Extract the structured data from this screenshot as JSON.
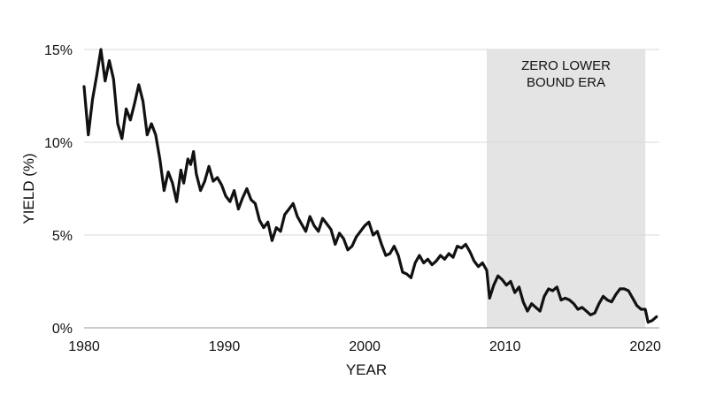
{
  "chart_data": {
    "type": "line",
    "title": "",
    "xlabel": "YEAR",
    "ylabel": "YIELD (%)",
    "xlim": [
      1980,
      2021
    ],
    "ylim": [
      0,
      15
    ],
    "x_ticks": [
      1980,
      1990,
      2000,
      2010,
      2020
    ],
    "x_tick_labels": [
      "1980",
      "1990",
      "2000",
      "2010",
      "2020"
    ],
    "y_ticks": [
      0,
      5,
      10,
      15
    ],
    "y_tick_labels": [
      "0%",
      "5%",
      "10%",
      "15%"
    ],
    "grid": "horizontal",
    "shaded_region": {
      "label_lines": [
        "ZERO LOWER",
        "BOUND ERA"
      ],
      "x_start": 2008.7,
      "x_end": 2020.0,
      "color": "#e4e4e4"
    },
    "series": [
      {
        "color": "#111111",
        "points": [
          [
            1980.0,
            13.0
          ],
          [
            1980.3,
            10.4
          ],
          [
            1980.6,
            12.3
          ],
          [
            1980.9,
            13.6
          ],
          [
            1981.2,
            15.0
          ],
          [
            1981.5,
            13.3
          ],
          [
            1981.8,
            14.4
          ],
          [
            1982.1,
            13.4
          ],
          [
            1982.4,
            11.0
          ],
          [
            1982.7,
            10.2
          ],
          [
            1983.0,
            11.8
          ],
          [
            1983.3,
            11.2
          ],
          [
            1983.6,
            12.1
          ],
          [
            1983.9,
            13.1
          ],
          [
            1984.2,
            12.2
          ],
          [
            1984.5,
            10.4
          ],
          [
            1984.8,
            11.0
          ],
          [
            1985.1,
            10.4
          ],
          [
            1985.4,
            9.1
          ],
          [
            1985.7,
            7.4
          ],
          [
            1986.0,
            8.4
          ],
          [
            1986.3,
            7.8
          ],
          [
            1986.6,
            6.8
          ],
          [
            1986.9,
            8.5
          ],
          [
            1987.1,
            7.8
          ],
          [
            1987.4,
            9.1
          ],
          [
            1987.6,
            8.8
          ],
          [
            1987.8,
            9.5
          ],
          [
            1988.0,
            8.3
          ],
          [
            1988.3,
            7.4
          ],
          [
            1988.6,
            7.9
          ],
          [
            1988.9,
            8.7
          ],
          [
            1989.2,
            7.9
          ],
          [
            1989.5,
            8.1
          ],
          [
            1989.8,
            7.7
          ],
          [
            1990.1,
            7.1
          ],
          [
            1990.4,
            6.8
          ],
          [
            1990.7,
            7.4
          ],
          [
            1991.0,
            6.4
          ],
          [
            1991.3,
            7.0
          ],
          [
            1991.6,
            7.5
          ],
          [
            1991.9,
            6.9
          ],
          [
            1992.2,
            6.7
          ],
          [
            1992.5,
            5.8
          ],
          [
            1992.8,
            5.4
          ],
          [
            1993.1,
            5.7
          ],
          [
            1993.4,
            4.7
          ],
          [
            1993.7,
            5.4
          ],
          [
            1994.0,
            5.2
          ],
          [
            1994.3,
            6.1
          ],
          [
            1994.6,
            6.4
          ],
          [
            1994.9,
            6.7
          ],
          [
            1995.2,
            6.0
          ],
          [
            1995.5,
            5.6
          ],
          [
            1995.8,
            5.2
          ],
          [
            1996.1,
            6.0
          ],
          [
            1996.4,
            5.5
          ],
          [
            1996.7,
            5.2
          ],
          [
            1997.0,
            5.9
          ],
          [
            1997.3,
            5.6
          ],
          [
            1997.6,
            5.3
          ],
          [
            1997.9,
            4.5
          ],
          [
            1998.2,
            5.1
          ],
          [
            1998.5,
            4.8
          ],
          [
            1998.8,
            4.2
          ],
          [
            1999.1,
            4.4
          ],
          [
            1999.4,
            4.9
          ],
          [
            1999.7,
            5.2
          ],
          [
            2000.0,
            5.5
          ],
          [
            2000.3,
            5.7
          ],
          [
            2000.6,
            5.0
          ],
          [
            2000.9,
            5.2
          ],
          [
            2001.2,
            4.5
          ],
          [
            2001.5,
            3.9
          ],
          [
            2001.8,
            4.0
          ],
          [
            2002.1,
            4.4
          ],
          [
            2002.4,
            3.9
          ],
          [
            2002.7,
            3.0
          ],
          [
            2003.0,
            2.9
          ],
          [
            2003.3,
            2.7
          ],
          [
            2003.6,
            3.5
          ],
          [
            2003.9,
            3.9
          ],
          [
            2004.2,
            3.5
          ],
          [
            2004.5,
            3.7
          ],
          [
            2004.8,
            3.4
          ],
          [
            2005.1,
            3.6
          ],
          [
            2005.4,
            3.9
          ],
          [
            2005.7,
            3.7
          ],
          [
            2006.0,
            4.0
          ],
          [
            2006.3,
            3.8
          ],
          [
            2006.6,
            4.4
          ],
          [
            2006.9,
            4.3
          ],
          [
            2007.2,
            4.5
          ],
          [
            2007.5,
            4.1
          ],
          [
            2007.8,
            3.6
          ],
          [
            2008.1,
            3.3
          ],
          [
            2008.4,
            3.5
          ],
          [
            2008.7,
            3.1
          ],
          [
            2008.9,
            1.6
          ],
          [
            2009.2,
            2.3
          ],
          [
            2009.5,
            2.8
          ],
          [
            2009.8,
            2.6
          ],
          [
            2010.1,
            2.3
          ],
          [
            2010.4,
            2.5
          ],
          [
            2010.7,
            1.9
          ],
          [
            2011.0,
            2.2
          ],
          [
            2011.3,
            1.4
          ],
          [
            2011.6,
            0.9
          ],
          [
            2011.9,
            1.3
          ],
          [
            2012.2,
            1.1
          ],
          [
            2012.5,
            0.9
          ],
          [
            2012.8,
            1.7
          ],
          [
            2013.1,
            2.1
          ],
          [
            2013.4,
            2.0
          ],
          [
            2013.7,
            2.2
          ],
          [
            2014.0,
            1.5
          ],
          [
            2014.3,
            1.6
          ],
          [
            2014.6,
            1.5
          ],
          [
            2014.9,
            1.3
          ],
          [
            2015.2,
            1.0
          ],
          [
            2015.5,
            1.1
          ],
          [
            2015.8,
            0.9
          ],
          [
            2016.1,
            0.7
          ],
          [
            2016.4,
            0.8
          ],
          [
            2016.7,
            1.3
          ],
          [
            2017.0,
            1.7
          ],
          [
            2017.3,
            1.5
          ],
          [
            2017.6,
            1.4
          ],
          [
            2017.9,
            1.8
          ],
          [
            2018.2,
            2.1
          ],
          [
            2018.5,
            2.1
          ],
          [
            2018.8,
            2.0
          ],
          [
            2019.1,
            1.6
          ],
          [
            2019.4,
            1.2
          ],
          [
            2019.7,
            1.0
          ],
          [
            2020.0,
            1.0
          ],
          [
            2020.2,
            0.3
          ],
          [
            2020.5,
            0.4
          ],
          [
            2020.8,
            0.6
          ]
        ]
      }
    ]
  }
}
